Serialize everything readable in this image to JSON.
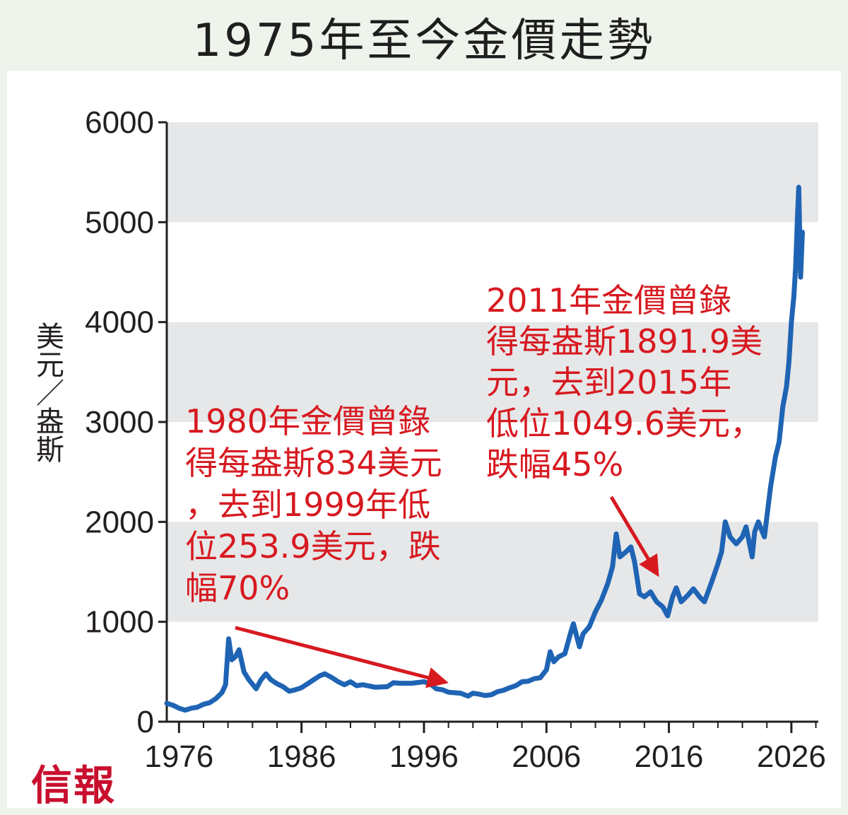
{
  "chart_data": {
    "type": "line",
    "title": "1975年至今金價走勢",
    "ylabel": "美元／盎斯",
    "xlabel": "",
    "xlim": [
      1975,
      2028.2
    ],
    "ylim": [
      0,
      6000
    ],
    "yticks": [
      0,
      1000,
      2000,
      3000,
      4000,
      5000,
      6000
    ],
    "xticks": [
      1976,
      1986,
      1996,
      2006,
      2016,
      2026
    ],
    "grid": "alternating gray bands",
    "legend": "none",
    "series": [
      {
        "color": "#1f64b4",
        "points": [
          [
            1975.0,
            185
          ],
          [
            1975.5,
            165
          ],
          [
            1976.0,
            135
          ],
          [
            1976.5,
            115
          ],
          [
            1977.0,
            135
          ],
          [
            1977.5,
            145
          ],
          [
            1978.0,
            175
          ],
          [
            1978.5,
            190
          ],
          [
            1979.0,
            230
          ],
          [
            1979.5,
            290
          ],
          [
            1979.8,
            370
          ],
          [
            1980.05,
            830
          ],
          [
            1980.3,
            620
          ],
          [
            1980.6,
            650
          ],
          [
            1980.9,
            720
          ],
          [
            1981.3,
            500
          ],
          [
            1981.7,
            420
          ],
          [
            1982.3,
            330
          ],
          [
            1982.7,
            420
          ],
          [
            1983.1,
            480
          ],
          [
            1983.5,
            420
          ],
          [
            1984.0,
            380
          ],
          [
            1984.5,
            350
          ],
          [
            1985.0,
            305
          ],
          [
            1985.5,
            320
          ],
          [
            1986.0,
            340
          ],
          [
            1986.5,
            380
          ],
          [
            1987.0,
            420
          ],
          [
            1987.5,
            460
          ],
          [
            1987.9,
            480
          ],
          [
            1988.5,
            440
          ],
          [
            1989.0,
            400
          ],
          [
            1989.5,
            370
          ],
          [
            1990.0,
            400
          ],
          [
            1990.5,
            360
          ],
          [
            1991.0,
            370
          ],
          [
            1992.0,
            345
          ],
          [
            1993.0,
            350
          ],
          [
            1993.5,
            390
          ],
          [
            1994.0,
            385
          ],
          [
            1995.0,
            385
          ],
          [
            1996.0,
            400
          ],
          [
            1996.5,
            380
          ],
          [
            1997.0,
            330
          ],
          [
            1997.5,
            320
          ],
          [
            1998.0,
            295
          ],
          [
            1998.5,
            290
          ],
          [
            1999.0,
            285
          ],
          [
            1999.6,
            256
          ],
          [
            2000.0,
            285
          ],
          [
            2000.5,
            275
          ],
          [
            2001.0,
            262
          ],
          [
            2001.5,
            270
          ],
          [
            2002.0,
            300
          ],
          [
            2002.5,
            315
          ],
          [
            2003.0,
            340
          ],
          [
            2003.5,
            360
          ],
          [
            2004.0,
            400
          ],
          [
            2004.5,
            405
          ],
          [
            2005.0,
            430
          ],
          [
            2005.5,
            440
          ],
          [
            2006.0,
            520
          ],
          [
            2006.3,
            700
          ],
          [
            2006.6,
            600
          ],
          [
            2007.0,
            650
          ],
          [
            2007.5,
            680
          ],
          [
            2008.0,
            900
          ],
          [
            2008.2,
            980
          ],
          [
            2008.7,
            750
          ],
          [
            2009.0,
            880
          ],
          [
            2009.5,
            950
          ],
          [
            2010.0,
            1100
          ],
          [
            2010.5,
            1220
          ],
          [
            2011.0,
            1380
          ],
          [
            2011.4,
            1550
          ],
          [
            2011.7,
            1880
          ],
          [
            2012.0,
            1650
          ],
          [
            2012.5,
            1700
          ],
          [
            2012.9,
            1750
          ],
          [
            2013.2,
            1600
          ],
          [
            2013.6,
            1280
          ],
          [
            2014.0,
            1250
          ],
          [
            2014.5,
            1300
          ],
          [
            2015.0,
            1200
          ],
          [
            2015.5,
            1150
          ],
          [
            2015.9,
            1060
          ],
          [
            2016.3,
            1250
          ],
          [
            2016.6,
            1340
          ],
          [
            2017.0,
            1200
          ],
          [
            2017.5,
            1260
          ],
          [
            2018.0,
            1330
          ],
          [
            2018.5,
            1250
          ],
          [
            2018.9,
            1200
          ],
          [
            2019.5,
            1400
          ],
          [
            2020.0,
            1580
          ],
          [
            2020.3,
            1700
          ],
          [
            2020.6,
            2000
          ],
          [
            2021.0,
            1850
          ],
          [
            2021.5,
            1780
          ],
          [
            2022.0,
            1850
          ],
          [
            2022.3,
            1950
          ],
          [
            2022.8,
            1650
          ],
          [
            2023.0,
            1900
          ],
          [
            2023.3,
            2000
          ],
          [
            2023.8,
            1850
          ],
          [
            2024.0,
            2050
          ],
          [
            2024.3,
            2350
          ],
          [
            2024.7,
            2650
          ],
          [
            2025.0,
            2800
          ],
          [
            2025.3,
            3150
          ],
          [
            2025.6,
            3350
          ],
          [
            2025.8,
            3600
          ],
          [
            2026.0,
            4000
          ],
          [
            2026.2,
            4250
          ],
          [
            2026.35,
            4550
          ],
          [
            2026.5,
            5050
          ],
          [
            2026.6,
            5350
          ],
          [
            2026.75,
            4450
          ],
          [
            2026.9,
            4900
          ]
        ]
      }
    ],
    "annotations": [
      {
        "lines": [
          "1980年金價曾錄",
          "得每盎斯834美元",
          "，去到1999年低",
          "位253.9美元，跌",
          "幅70%"
        ]
      },
      {
        "lines": [
          "2011年金價曾錄",
          "得每盎斯1891.9美",
          "元，去到2015年",
          "低位1049.6美元，",
          "跌幅45%"
        ]
      }
    ]
  },
  "brand": "信報",
  "colors": {
    "line": "#1f64b4",
    "annotation": "#d71920",
    "band": "#e6e7e8",
    "brand": "#c8102e",
    "outer_background": "#eef3ec"
  }
}
